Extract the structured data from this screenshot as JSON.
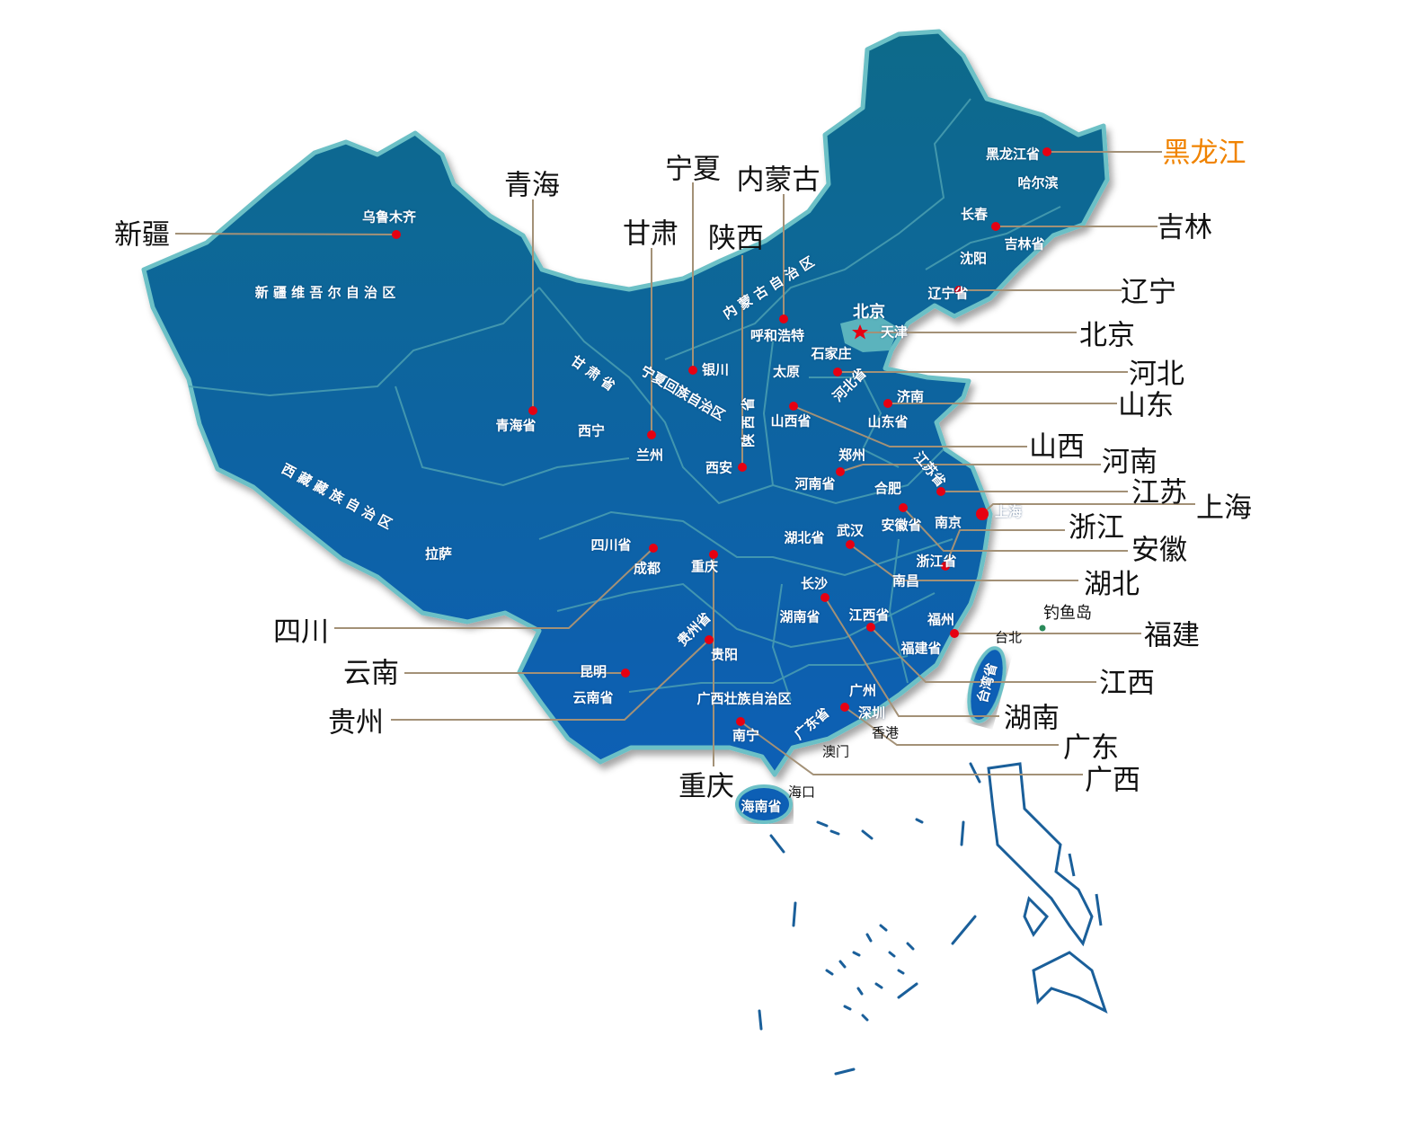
{
  "colors": {
    "land_top": "#0b6a8a",
    "land_bottom": "#0a5fb5",
    "border": "#6cc0c6",
    "dot": "#e60012",
    "leader": "#a39177",
    "callout_highlight": "#f08300",
    "island_dot": "#2a8a5a"
  },
  "callouts": [
    {
      "text": "新疆"
    },
    {
      "text": "青海"
    },
    {
      "text": "宁夏"
    },
    {
      "text": "甘肃"
    },
    {
      "text": "陕西"
    },
    {
      "text": "内蒙古"
    },
    {
      "text": "黑龙江"
    },
    {
      "text": "吉林"
    },
    {
      "text": "辽宁"
    },
    {
      "text": "北京"
    },
    {
      "text": "河北"
    },
    {
      "text": "山东"
    },
    {
      "text": "山西"
    },
    {
      "text": "河南"
    },
    {
      "text": "江苏"
    },
    {
      "text": "上海"
    },
    {
      "text": "浙江"
    },
    {
      "text": "安徽"
    },
    {
      "text": "湖北"
    },
    {
      "text": "福建"
    },
    {
      "text": "江西"
    },
    {
      "text": "湖南"
    },
    {
      "text": "广东"
    },
    {
      "text": "广西"
    },
    {
      "text": "重庆"
    },
    {
      "text": "贵州"
    },
    {
      "text": "云南"
    },
    {
      "text": "四川"
    }
  ],
  "labels": [
    {
      "text": "乌鲁木齐"
    },
    {
      "text": "新 疆 维 吾 尔 自 治 区"
    },
    {
      "text": "甘   肃   省"
    },
    {
      "text": "青海省"
    },
    {
      "text": "西宁"
    },
    {
      "text": "兰州"
    },
    {
      "text": "银川"
    },
    {
      "text": "宁夏回族自治区"
    },
    {
      "text": "陕 西 省"
    },
    {
      "text": "西安"
    },
    {
      "text": "呼和浩特"
    },
    {
      "text": "内 蒙 古 自 治 区"
    },
    {
      "text": "北京"
    },
    {
      "text": "天津"
    },
    {
      "text": "石家庄"
    },
    {
      "text": "太原"
    },
    {
      "text": "河北省"
    },
    {
      "text": "济南"
    },
    {
      "text": "山东省"
    },
    {
      "text": "山西省"
    },
    {
      "text": "郑州"
    },
    {
      "text": "江苏省"
    },
    {
      "text": "河南省"
    },
    {
      "text": "合肥"
    },
    {
      "text": "安徽省"
    },
    {
      "text": "南京"
    },
    {
      "text": "上海"
    },
    {
      "text": "湖北省"
    },
    {
      "text": "武汉"
    },
    {
      "text": "浙江省"
    },
    {
      "text": "南昌"
    },
    {
      "text": "四川省"
    },
    {
      "text": "成都"
    },
    {
      "text": "重庆"
    },
    {
      "text": "拉萨"
    },
    {
      "text": "西 藏 藏 族 自 治 区"
    },
    {
      "text": "长沙"
    },
    {
      "text": "湖南省"
    },
    {
      "text": "江西省"
    },
    {
      "text": "福州"
    },
    {
      "text": "福建省"
    },
    {
      "text": "贵州省"
    },
    {
      "text": "贵阳"
    },
    {
      "text": "昆明"
    },
    {
      "text": "云南省"
    },
    {
      "text": "广西壮族自治区"
    },
    {
      "text": "广州"
    },
    {
      "text": "深圳"
    },
    {
      "text": "广东省"
    },
    {
      "text": "南宁"
    },
    {
      "text": "海南省"
    },
    {
      "text": "台湾省"
    },
    {
      "text": "黑龙江省"
    },
    {
      "text": "哈尔滨"
    },
    {
      "text": "长春"
    },
    {
      "text": "吉林省"
    },
    {
      "text": "沈阳"
    },
    {
      "text": "辽宁省"
    },
    {
      "text": "钓鱼岛"
    },
    {
      "text": "台北"
    },
    {
      "text": "香港"
    },
    {
      "text": "澳门"
    },
    {
      "text": "海口"
    }
  ]
}
